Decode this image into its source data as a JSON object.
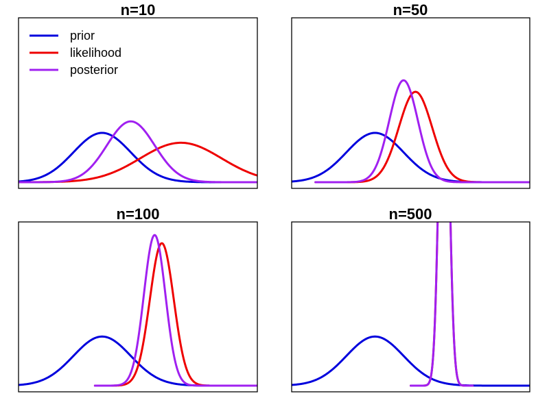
{
  "chart_data": [
    {
      "type": "line",
      "title": "n=10",
      "xlim": [
        0,
        1
      ],
      "ylim": [
        0,
        1
      ],
      "legend": {
        "placement": "top-left",
        "entries": [
          "prior",
          "likelihood",
          "posterior"
        ]
      },
      "series": [
        {
          "name": "prior",
          "color": "#0000dd",
          "mean": 0.35,
          "sd": 0.12,
          "peak": 0.3
        },
        {
          "name": "likelihood",
          "color": "#ee0000",
          "mean": 0.68,
          "sd": 0.17,
          "peak": 0.24
        },
        {
          "name": "posterior",
          "color": "#a020f0",
          "mean": 0.47,
          "sd": 0.1,
          "peak": 0.37
        }
      ]
    },
    {
      "type": "line",
      "title": "n=50",
      "xlim": [
        0,
        1
      ],
      "ylim": [
        0,
        1
      ],
      "series": [
        {
          "name": "prior",
          "color": "#0000dd",
          "mean": 0.35,
          "sd": 0.12,
          "peak": 0.3
        },
        {
          "name": "likelihood",
          "color": "#ee0000",
          "mean": 0.52,
          "sd": 0.07,
          "peak": 0.55,
          "xmin": 0.1
        },
        {
          "name": "posterior",
          "color": "#a020f0",
          "mean": 0.47,
          "sd": 0.06,
          "peak": 0.62,
          "xmin": 0.1
        }
      ]
    },
    {
      "type": "line",
      "title": "n=100",
      "xlim": [
        0,
        1
      ],
      "ylim": [
        0,
        1
      ],
      "series": [
        {
          "name": "prior",
          "color": "#0000dd",
          "mean": 0.35,
          "sd": 0.12,
          "peak": 0.3
        },
        {
          "name": "likelihood",
          "color": "#ee0000",
          "mean": 0.6,
          "sd": 0.05,
          "peak": 0.87,
          "xmin": 0.32
        },
        {
          "name": "posterior",
          "color": "#a020f0",
          "mean": 0.57,
          "sd": 0.045,
          "peak": 0.92,
          "xmin": 0.32
        }
      ]
    },
    {
      "type": "line",
      "title": "n=500",
      "xlim": [
        0,
        1
      ],
      "ylim": [
        0,
        1
      ],
      "series": [
        {
          "name": "prior",
          "color": "#0000dd",
          "mean": 0.35,
          "sd": 0.12,
          "peak": 0.3
        },
        {
          "name": "likelihood",
          "color": "#ee0000",
          "mean": 0.64,
          "sd": 0.02,
          "peak": 2.5,
          "xmin": 0.5,
          "xmax": 0.76
        },
        {
          "name": "posterior",
          "color": "#a020f0",
          "mean": 0.64,
          "sd": 0.02,
          "peak": 2.5,
          "xmin": 0.5,
          "xmax": 0.76
        }
      ]
    }
  ]
}
